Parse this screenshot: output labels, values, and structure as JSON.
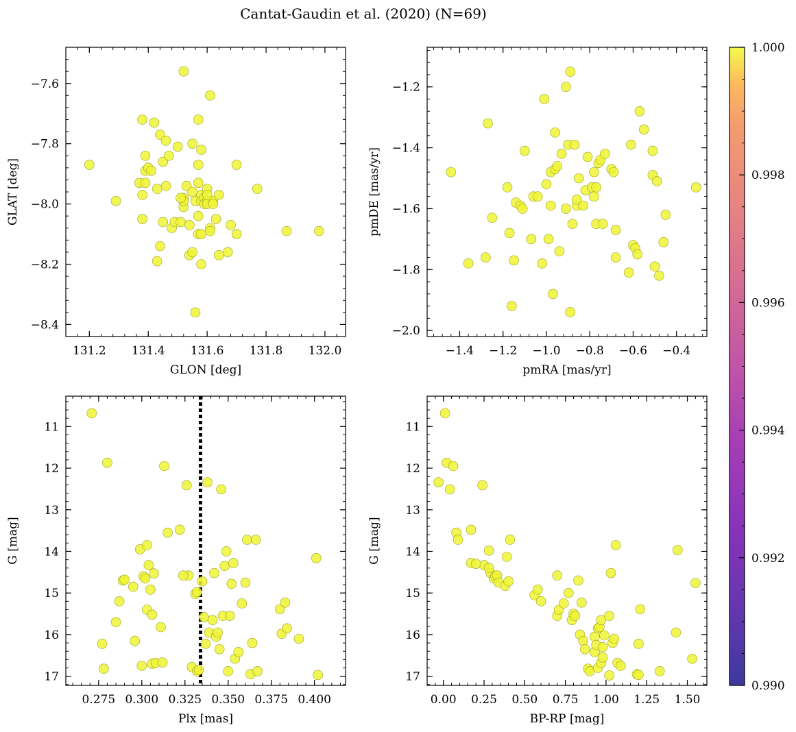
{
  "figure": {
    "title": "Cantat-Gaudin et al. (2020) (N=69)",
    "marker_color": "#f0f535",
    "marker_edge": "#9aa020",
    "vline_color": "#000000"
  },
  "colorbar": {
    "vmin": 0.99,
    "vmax": 1.0,
    "ticks": [
      "0.990",
      "0.992",
      "0.994",
      "0.996",
      "0.998",
      "1.000"
    ],
    "tick_values": [
      0.99,
      0.992,
      0.994,
      0.996,
      0.998,
      1.0
    ],
    "colormap": "plasma"
  },
  "chart_data": [
    {
      "type": "scatter",
      "xlabel": "GLON [deg]",
      "ylabel": "GLAT [deg]",
      "xlim": [
        131.12,
        132.07
      ],
      "ylim": [
        -8.44,
        -7.48
      ],
      "y_inverted": false,
      "xticks": [
        131.2,
        131.4,
        131.6,
        131.8,
        132.0
      ],
      "xtick_labels": [
        "131.2",
        "131.4",
        "131.6",
        "131.8",
        "132.0"
      ],
      "yticks": [
        -8.4,
        -8.2,
        -8.0,
        -7.8,
        -7.6
      ],
      "ytick_labels": [
        "−8.4",
        "−8.2",
        "−8.0",
        "−7.8",
        "−7.6"
      ],
      "x": [
        131.2,
        131.29,
        131.37,
        131.38,
        131.38,
        131.38,
        131.39,
        131.39,
        131.4,
        131.41,
        131.42,
        131.43,
        131.44,
        131.44,
        131.45,
        131.46,
        131.46,
        131.47,
        131.48,
        131.49,
        131.5,
        131.51,
        131.52,
        131.52,
        131.52,
        131.53,
        131.54,
        131.54,
        131.55,
        131.55,
        131.56,
        131.56,
        131.57,
        131.57,
        131.57,
        131.57,
        131.57,
        131.58,
        131.58,
        131.58,
        131.58,
        131.59,
        131.59,
        131.6,
        131.6,
        131.6,
        131.61,
        131.61,
        131.61,
        131.62,
        131.63,
        131.64,
        131.64,
        131.67,
        131.68,
        131.7,
        131.7,
        131.77,
        131.87,
        131.98,
        131.62,
        131.52,
        131.51,
        131.45,
        131.43,
        131.39,
        131.55,
        131.6,
        131.58
      ],
      "y": [
        -7.87,
        -7.99,
        -7.93,
        -7.72,
        -7.97,
        -8.05,
        -7.84,
        -7.89,
        -7.88,
        -7.89,
        -7.73,
        -8.19,
        -7.77,
        -8.14,
        -7.86,
        -7.79,
        -7.94,
        -7.84,
        -8.08,
        -8.06,
        -7.81,
        -8.06,
        -7.56,
        -7.98,
        -8.01,
        -7.94,
        -8.17,
        -8.07,
        -7.8,
        -7.96,
        -8.36,
        -7.99,
        -7.72,
        -7.87,
        -7.93,
        -8.04,
        -8.1,
        -7.97,
        -7.99,
        -8.2,
        -7.82,
        -7.98,
        -8.0,
        -7.95,
        -7.99,
        -8.0,
        -7.64,
        -8.08,
        -8.09,
        -7.99,
        -8.05,
        -7.97,
        -8.17,
        -8.16,
        -8.07,
        -7.87,
        -8.1,
        -7.95,
        -8.09,
        -8.09,
        -8.0,
        -7.99,
        -7.98,
        -8.06,
        -7.95,
        -7.93,
        -8.16,
        -7.97,
        -8.1
      ]
    },
    {
      "type": "scatter",
      "xlabel": "pmRA [mas/yr]",
      "ylabel": "pmDE [mas/yr]",
      "xlim": [
        -1.55,
        -0.26
      ],
      "ylim": [
        -2.02,
        -1.07
      ],
      "y_inverted": false,
      "xticks": [
        -1.4,
        -1.2,
        -1.0,
        -0.8,
        -0.6,
        -0.4
      ],
      "xtick_labels": [
        "−1.4",
        "−1.2",
        "−1.0",
        "−0.8",
        "−0.6",
        "−0.4"
      ],
      "yticks": [
        -2.0,
        -1.8,
        -1.6,
        -1.4,
        -1.2
      ],
      "ytick_labels": [
        "−2.0",
        "−1.8",
        "−1.6",
        "−1.4",
        "−1.2"
      ],
      "x": [
        -1.44,
        -1.36,
        -1.28,
        -1.27,
        -1.25,
        -1.18,
        -1.17,
        -1.16,
        -1.15,
        -1.14,
        -1.12,
        -1.11,
        -1.1,
        -1.07,
        -1.06,
        -1.04,
        -1.02,
        -1.01,
        -1.0,
        -0.99,
        -0.98,
        -0.98,
        -0.97,
        -0.96,
        -0.96,
        -0.95,
        -0.94,
        -0.93,
        -0.91,
        -0.9,
        -0.89,
        -0.89,
        -0.88,
        -0.87,
        -0.86,
        -0.86,
        -0.85,
        -0.83,
        -0.82,
        -0.81,
        -0.79,
        -0.78,
        -0.78,
        -0.77,
        -0.77,
        -0.76,
        -0.75,
        -0.74,
        -0.73,
        -0.7,
        -0.69,
        -0.68,
        -0.68,
        -0.62,
        -0.61,
        -0.6,
        -0.59,
        -0.58,
        -0.57,
        -0.55,
        -0.51,
        -0.51,
        -0.5,
        -0.49,
        -0.48,
        -0.46,
        -0.45,
        -0.31,
        -0.91
      ],
      "y": [
        -1.48,
        -1.78,
        -1.76,
        -1.32,
        -1.63,
        -1.53,
        -1.68,
        -1.92,
        -1.77,
        -1.58,
        -1.59,
        -1.6,
        -1.41,
        -1.7,
        -1.56,
        -1.56,
        -1.78,
        -1.24,
        -1.52,
        -1.7,
        -1.59,
        -1.48,
        -1.88,
        -1.47,
        -1.35,
        -1.46,
        -1.74,
        -1.42,
        -1.2,
        -1.39,
        -1.15,
        -1.94,
        -1.65,
        -1.39,
        -1.59,
        -1.57,
        -1.5,
        -1.59,
        -1.54,
        -1.43,
        -1.53,
        -1.48,
        -1.56,
        -1.65,
        -1.53,
        -1.45,
        -1.44,
        -1.65,
        -1.42,
        -1.47,
        -1.48,
        -1.76,
        -1.67,
        -1.81,
        -1.39,
        -1.72,
        -1.73,
        -1.75,
        -1.28,
        -1.34,
        -1.49,
        -1.41,
        -1.79,
        -1.51,
        -1.82,
        -1.71,
        -1.62,
        -1.53,
        -1.6
      ]
    },
    {
      "type": "scatter",
      "xlabel": "Plx [mas]",
      "ylabel": "G [mag]",
      "xlim": [
        0.256,
        0.418
      ],
      "ylim": [
        17.22,
        10.27
      ],
      "y_inverted": true,
      "xticks": [
        0.275,
        0.3,
        0.325,
        0.35,
        0.375,
        0.4
      ],
      "xtick_labels": [
        "0.275",
        "0.300",
        "0.325",
        "0.350",
        "0.375",
        "0.400"
      ],
      "yticks": [
        11,
        12,
        13,
        14,
        15,
        16,
        17
      ],
      "ytick_labels": [
        "11",
        "12",
        "13",
        "14",
        "15",
        "16",
        "17"
      ],
      "vline_x": 0.334,
      "x": [
        0.271,
        0.277,
        0.278,
        0.28,
        0.285,
        0.287,
        0.289,
        0.29,
        0.295,
        0.296,
        0.299,
        0.3,
        0.301,
        0.302,
        0.303,
        0.303,
        0.304,
        0.305,
        0.306,
        0.306,
        0.307,
        0.308,
        0.311,
        0.312,
        0.313,
        0.315,
        0.322,
        0.326,
        0.327,
        0.329,
        0.331,
        0.332,
        0.332,
        0.333,
        0.335,
        0.336,
        0.337,
        0.338,
        0.339,
        0.341,
        0.342,
        0.343,
        0.344,
        0.345,
        0.346,
        0.347,
        0.348,
        0.349,
        0.35,
        0.351,
        0.352,
        0.353,
        0.354,
        0.356,
        0.358,
        0.36,
        0.361,
        0.363,
        0.364,
        0.366,
        0.367,
        0.38,
        0.381,
        0.383,
        0.384,
        0.391,
        0.401,
        0.402,
        0.324
      ],
      "y": [
        10.68,
        16.22,
        16.82,
        11.87,
        15.7,
        15.2,
        14.7,
        14.68,
        14.85,
        16.15,
        13.95,
        16.75,
        14.6,
        14.65,
        13.85,
        15.4,
        14.33,
        14.92,
        15.52,
        16.7,
        14.53,
        16.68,
        15.82,
        16.67,
        11.95,
        13.55,
        13.48,
        12.41,
        14.58,
        16.78,
        15.02,
        14.98,
        16.88,
        16.85,
        14.72,
        15.58,
        16.22,
        12.34,
        15.95,
        15.65,
        14.52,
        16.05,
        15.95,
        16.35,
        12.51,
        15.55,
        14.35,
        14.0,
        16.88,
        15.55,
        14.78,
        14.28,
        16.58,
        16.42,
        15.25,
        14.75,
        13.72,
        16.95,
        16.2,
        13.72,
        16.88,
        15.39,
        15.98,
        15.23,
        15.85,
        16.1,
        14.16,
        16.97,
        14.58
      ]
    },
    {
      "type": "scatter",
      "xlabel": "BP-RP [mag]",
      "ylabel": "G [mag]",
      "xlim": [
        -0.1,
        1.62
      ],
      "ylim": [
        17.22,
        10.27
      ],
      "y_inverted": true,
      "xticks": [
        0.0,
        0.25,
        0.5,
        0.75,
        1.0,
        1.25,
        1.5
      ],
      "xtick_labels": [
        "0.00",
        "0.25",
        "0.50",
        "0.75",
        "1.00",
        "1.25",
        "1.50"
      ],
      "yticks": [
        11,
        12,
        13,
        14,
        15,
        16,
        17
      ],
      "ytick_labels": [
        "11",
        "12",
        "13",
        "14",
        "15",
        "16",
        "17"
      ],
      "x": [
        0.01,
        0.02,
        0.06,
        -0.03,
        0.04,
        0.08,
        0.09,
        0.17,
        0.24,
        0.25,
        0.28,
        0.29,
        0.31,
        0.32,
        0.33,
        0.34,
        0.38,
        0.39,
        0.4,
        0.41,
        0.56,
        0.58,
        0.6,
        0.7,
        0.7,
        0.71,
        0.74,
        0.77,
        0.79,
        0.8,
        0.81,
        0.83,
        0.84,
        0.85,
        0.86,
        0.87,
        0.89,
        0.9,
        0.93,
        0.93,
        0.94,
        0.95,
        0.95,
        0.96,
        0.97,
        0.97,
        0.98,
        0.98,
        0.99,
        1.02,
        1.02,
        1.03,
        1.04,
        1.05,
        1.06,
        1.07,
        1.09,
        1.2,
        1.19,
        1.21,
        1.2,
        1.33,
        1.43,
        1.44,
        1.53,
        1.55,
        0.17,
        0.2,
        0.28
      ],
      "y": [
        10.68,
        11.87,
        11.95,
        12.34,
        12.51,
        13.55,
        13.72,
        13.48,
        12.41,
        14.33,
        13.98,
        14.52,
        14.65,
        14.6,
        14.58,
        14.75,
        14.83,
        14.13,
        14.72,
        13.72,
        15.05,
        14.92,
        15.2,
        14.58,
        15.55,
        15.4,
        15.25,
        15.0,
        15.65,
        15.5,
        15.55,
        14.7,
        16.0,
        15.23,
        16.15,
        16.35,
        16.82,
        16.88,
        16.42,
        16.05,
        16.25,
        15.85,
        16.8,
        15.82,
        16.68,
        15.65,
        16.55,
        16.3,
        16.02,
        15.55,
        16.98,
        14.52,
        16.2,
        16.1,
        13.85,
        16.68,
        16.75,
        16.22,
        16.95,
        15.39,
        16.97,
        16.88,
        15.95,
        13.97,
        16.58,
        14.76,
        14.28,
        14.3,
        14.4
      ]
    }
  ]
}
